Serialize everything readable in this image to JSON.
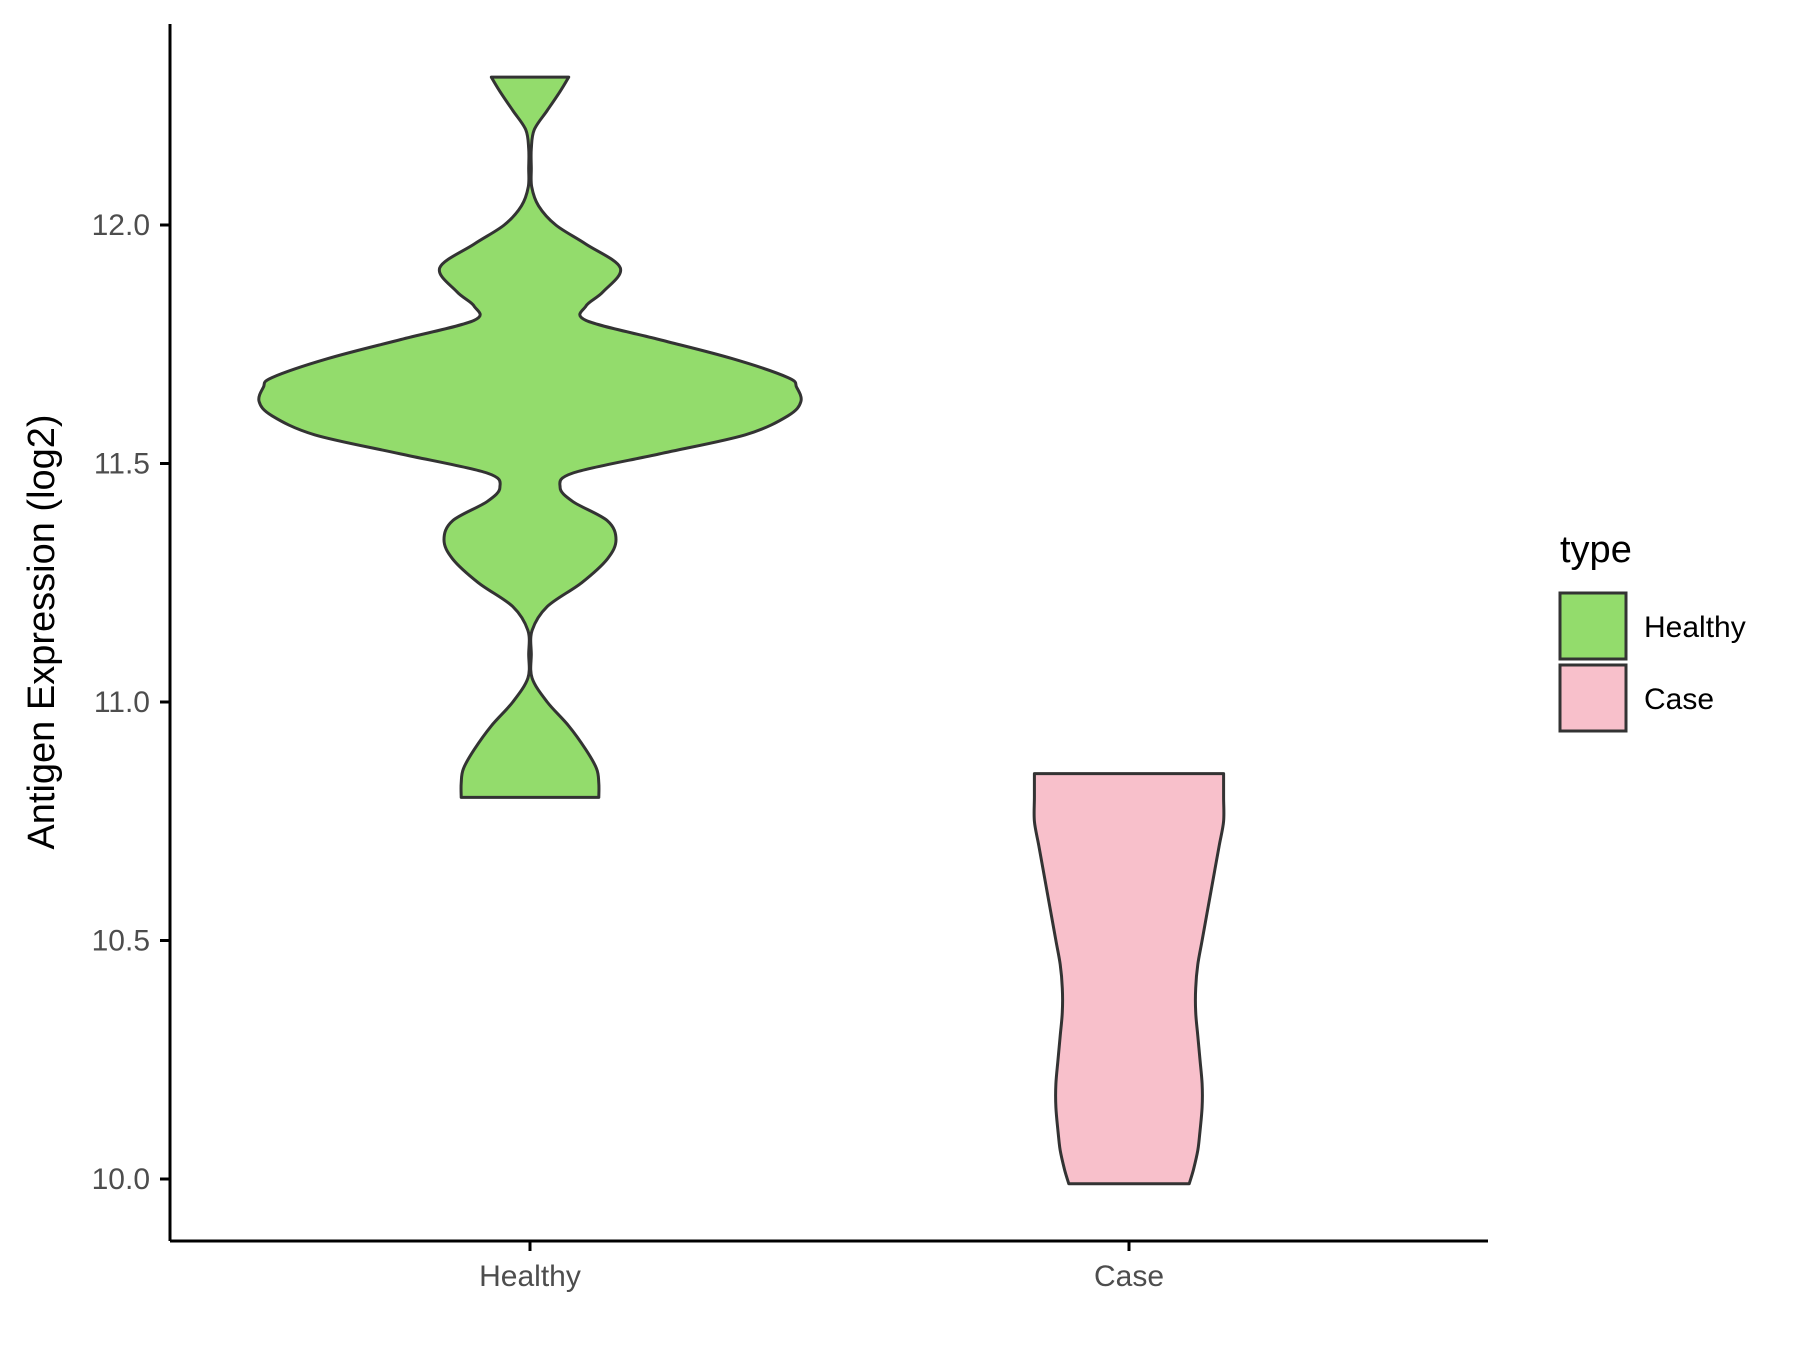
{
  "chart_data": {
    "type": "violin",
    "title": "",
    "xlabel": "",
    "ylabel": "Antigen Expression (log2)",
    "ylim": [
      9.9,
      12.4
    ],
    "yticks": [
      10.0,
      10.5,
      11.0,
      11.5,
      12.0
    ],
    "ytick_labels": [
      "10.0",
      "10.5",
      "11.0",
      "11.5",
      "12.0"
    ],
    "categories": [
      "Healthy",
      "Case"
    ],
    "grid": false,
    "legend": {
      "title": "type",
      "position": "right",
      "entries": [
        {
          "label": "Healthy",
          "color": "#93dc6c"
        },
        {
          "label": "Case",
          "color": "#f8c0cb"
        }
      ]
    },
    "outline_color": "#333333",
    "series": [
      {
        "name": "Healthy",
        "color": "#93dc6c",
        "range": [
          10.8,
          12.31
        ],
        "density": [
          [
            10.8,
            0.16
          ],
          [
            10.83,
            0.16
          ],
          [
            10.86,
            0.155
          ],
          [
            10.9,
            0.13
          ],
          [
            10.95,
            0.09
          ],
          [
            11.0,
            0.04
          ],
          [
            11.05,
            0.005
          ],
          [
            11.1,
            0.003
          ],
          [
            11.15,
            0.005
          ],
          [
            11.2,
            0.04
          ],
          [
            11.25,
            0.12
          ],
          [
            11.3,
            0.18
          ],
          [
            11.34,
            0.2
          ],
          [
            11.38,
            0.18
          ],
          [
            11.42,
            0.1
          ],
          [
            11.45,
            0.07
          ],
          [
            11.48,
            0.1
          ],
          [
            11.52,
            0.3
          ],
          [
            11.56,
            0.5
          ],
          [
            11.6,
            0.6
          ],
          [
            11.63,
            0.63
          ],
          [
            11.66,
            0.62
          ],
          [
            11.68,
            0.6
          ],
          [
            11.72,
            0.47
          ],
          [
            11.76,
            0.3
          ],
          [
            11.8,
            0.13
          ],
          [
            11.83,
            0.13
          ],
          [
            11.86,
            0.17
          ],
          [
            11.91,
            0.21
          ],
          [
            11.96,
            0.13
          ],
          [
            12.0,
            0.06
          ],
          [
            12.04,
            0.02
          ],
          [
            12.08,
            0.004
          ],
          [
            12.12,
            0.003
          ],
          [
            12.16,
            0.003
          ],
          [
            12.2,
            0.01
          ],
          [
            12.24,
            0.04
          ],
          [
            12.28,
            0.07
          ],
          [
            12.31,
            0.09
          ]
        ]
      },
      {
        "name": "Case",
        "color": "#f8c0cb",
        "range": [
          9.99,
          10.85
        ],
        "density": [
          [
            9.99,
            0.14
          ],
          [
            10.02,
            0.15
          ],
          [
            10.06,
            0.16
          ],
          [
            10.1,
            0.165
          ],
          [
            10.15,
            0.17
          ],
          [
            10.2,
            0.17
          ],
          [
            10.25,
            0.165
          ],
          [
            10.3,
            0.16
          ],
          [
            10.35,
            0.155
          ],
          [
            10.4,
            0.155
          ],
          [
            10.45,
            0.16
          ],
          [
            10.5,
            0.17
          ],
          [
            10.55,
            0.18
          ],
          [
            10.6,
            0.19
          ],
          [
            10.65,
            0.2
          ],
          [
            10.7,
            0.21
          ],
          [
            10.75,
            0.22
          ],
          [
            10.8,
            0.22
          ],
          [
            10.85,
            0.22
          ]
        ]
      }
    ]
  }
}
